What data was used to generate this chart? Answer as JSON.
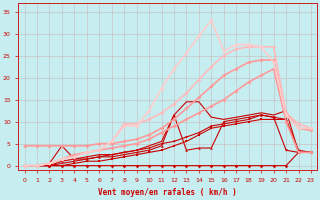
{
  "background_color": "#c6eef0",
  "grid_color": "#aacccc",
  "xlabel": "Vent moyen/en rafales ( km/h )",
  "ylabel_ticks": [
    0,
    5,
    10,
    15,
    20,
    25,
    30,
    35
  ],
  "xlim": [
    -0.5,
    23.5
  ],
  "ylim": [
    -1,
    37
  ],
  "xticks": [
    0,
    1,
    2,
    3,
    4,
    5,
    6,
    7,
    8,
    9,
    10,
    11,
    12,
    13,
    14,
    15,
    16,
    17,
    18,
    19,
    20,
    21,
    22,
    23
  ],
  "series": [
    {
      "y": [
        0,
        0,
        0,
        0,
        0,
        0,
        0,
        0,
        0,
        0,
        0,
        0,
        0,
        0,
        0,
        0,
        0,
        0,
        0,
        0,
        0,
        0,
        3,
        3
      ],
      "color": "#cc0000",
      "lw": 0.8,
      "marker": "D",
      "ms": 1.8
    },
    {
      "y": [
        0,
        0,
        0,
        0,
        0.5,
        1,
        1,
        1.5,
        2,
        2.5,
        3,
        3.5,
        4.5,
        5.5,
        7,
        8.5,
        9,
        9.5,
        10,
        10.5,
        10.5,
        10.5,
        3,
        3
      ],
      "color": "#cc0000",
      "lw": 0.8,
      "marker": "s",
      "ms": 1.8
    },
    {
      "y": [
        0,
        0,
        0,
        1,
        1.5,
        1.5,
        2,
        2,
        2.5,
        3,
        3.5,
        4.5,
        11.5,
        3.5,
        4,
        4,
        10,
        10.5,
        11,
        11.5,
        11,
        10.5,
        3.5,
        3
      ],
      "color": "#cc0000",
      "lw": 0.8,
      "marker": "^",
      "ms": 1.8
    },
    {
      "y": [
        0,
        0,
        0,
        0.5,
        1,
        1.5,
        2,
        2.5,
        3,
        3.5,
        4.5,
        5.5,
        11.5,
        14.5,
        14.5,
        11,
        10.5,
        11,
        11.5,
        12,
        11.5,
        12.5,
        3,
        3
      ],
      "color": "#cc0000",
      "lw": 0.8,
      "marker": "x",
      "ms": 2.0
    },
    {
      "y": [
        0,
        0,
        0.5,
        4.5,
        1.5,
        2,
        2.5,
        2.5,
        3,
        3.5,
        4,
        5,
        5.5,
        6.5,
        7.5,
        9,
        9.5,
        10,
        10.5,
        11.5,
        11,
        3.5,
        3,
        3
      ],
      "color": "#cc0000",
      "lw": 0.8,
      "marker": "v",
      "ms": 1.8
    },
    {
      "y": [
        4.5,
        4.5,
        4.5,
        4.5,
        4.5,
        4.5,
        5,
        5,
        5.5,
        6,
        7,
        8.5,
        10.5,
        13,
        15.5,
        18,
        20.5,
        22,
        23.5,
        24,
        24,
        12,
        8.5,
        8
      ],
      "color": "#ff9999",
      "lw": 1.2,
      "marker": "D",
      "ms": 2.0
    },
    {
      "y": [
        0,
        0,
        0.5,
        1.5,
        2.5,
        3,
        3.5,
        4,
        4.5,
        5,
        6,
        7.5,
        9,
        10.5,
        12,
        13.5,
        15,
        17,
        19,
        20.5,
        22,
        10,
        3,
        3
      ],
      "color": "#ff9999",
      "lw": 1.2,
      "marker": "D",
      "ms": 2.0
    },
    {
      "y": [
        0,
        0,
        0.5,
        1.5,
        2,
        3,
        3.5,
        5.5,
        9.5,
        9.5,
        10.5,
        12,
        14,
        16.5,
        19.5,
        22.5,
        25,
        26.5,
        27,
        27,
        27,
        12,
        9.5,
        8.5
      ],
      "color": "#ffbbbb",
      "lw": 1.2,
      "marker": "D",
      "ms": 2.0
    },
    {
      "y": [
        0,
        0,
        0.5,
        1.5,
        2,
        3,
        3.5,
        5.5,
        9,
        9,
        12.5,
        17.5,
        22,
        25.5,
        29.5,
        33,
        26,
        27.5,
        27.5,
        27,
        23.5,
        11.5,
        8.5,
        8.5
      ],
      "color": "#ffcccc",
      "lw": 1.2,
      "marker": "D",
      "ms": 2.0
    }
  ]
}
